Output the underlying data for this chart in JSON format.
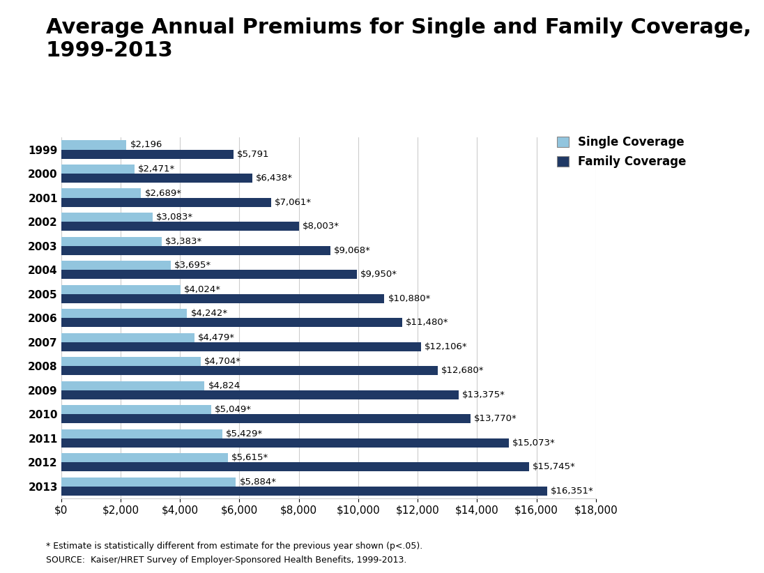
{
  "title": "Average Annual Premiums for Single and Family Coverage,\n1999-2013",
  "years": [
    1999,
    2000,
    2001,
    2002,
    2003,
    2004,
    2005,
    2006,
    2007,
    2008,
    2009,
    2010,
    2011,
    2012,
    2013
  ],
  "single": [
    2196,
    2471,
    2689,
    3083,
    3383,
    3695,
    4024,
    4242,
    4479,
    4704,
    4824,
    5049,
    5429,
    5615,
    5884
  ],
  "family": [
    5791,
    6438,
    7061,
    8003,
    9068,
    9950,
    10880,
    11480,
    12106,
    12680,
    13375,
    13770,
    15073,
    15745,
    16351
  ],
  "single_labels": [
    "$2,196",
    "$2,471*",
    "$2,689*",
    "$3,083*",
    "$3,383*",
    "$3,695*",
    "$4,024*",
    "$4,242*",
    "$4,479*",
    "$4,704*",
    "$4,824",
    "$5,049*",
    "$5,429*",
    "$5,615*",
    "$5,884*"
  ],
  "family_labels": [
    "$5,791",
    "$6,438*",
    "$7,061*",
    "$8,003*",
    "$9,068*",
    "$9,950*",
    "$10,880*",
    "$11,480*",
    "$12,106*",
    "$12,680*",
    "$13,375*",
    "$13,770*",
    "$15,073*",
    "$15,745*",
    "$16,351*"
  ],
  "single_color": "#92C5DE",
  "family_color": "#1F3864",
  "background_color": "#FFFFFF",
  "xlim": [
    0,
    18000
  ],
  "xticks": [
    0,
    2000,
    4000,
    6000,
    8000,
    10000,
    12000,
    14000,
    16000,
    18000
  ],
  "footnote1": "* Estimate is statistically different from estimate for the previous year shown (p<.05).",
  "footnote2": "SOURCE:  Kaiser/HRET Survey of Employer-Sponsored Health Benefits, 1999-2013.",
  "legend_single": "Single Coverage",
  "legend_family": "Family Coverage",
  "bar_height": 0.38,
  "title_fontsize": 22,
  "axis_fontsize": 11,
  "label_fontsize": 9.5,
  "legend_fontsize": 12
}
